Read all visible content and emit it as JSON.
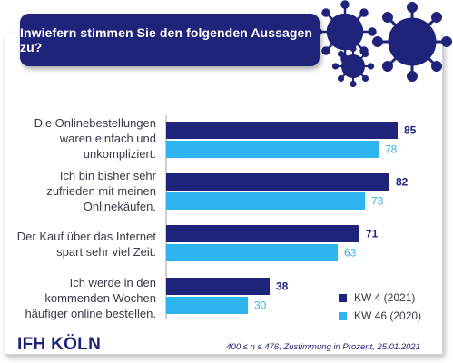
{
  "header": {
    "title": "Inwiefern stimmen Sie den folgenden Aussagen zu?"
  },
  "chart_data": {
    "type": "bar",
    "orientation": "horizontal",
    "title": "Inwiefern stimmen Sie den folgenden Aussagen zu?",
    "categories": [
      "Die Onlinebestellungen\nwaren einfach und\nunkompliziert.",
      "Ich bin bisher sehr\nzufrieden mit meinen\nOnlinekäufen.",
      "Der Kauf über das Internet\nspart sehr viel Zeit.",
      "Ich werde in den\nkommenden Wochen\nhäufiger online bestellen."
    ],
    "series": [
      {
        "name": "KW 4 (2021)",
        "color": "#1f237a",
        "values": [
          85,
          82,
          71,
          38
        ]
      },
      {
        "name": "KW 46 (2020)",
        "color": "#2eb4ee",
        "values": [
          78,
          73,
          63,
          30
        ]
      }
    ],
    "xlim": [
      0,
      100
    ],
    "grid": false,
    "legend_position": "bottom-right",
    "note": "400 ≤ n ≤ 476, Zustimmung in Prozent, 25.01.2021"
  },
  "footer": {
    "logo": "IFH KÖLN",
    "note": "400 ≤ n ≤ 476, Zustimmung in Prozent, 25.01.2021"
  },
  "icons": {
    "decoration": "virus-icon"
  }
}
